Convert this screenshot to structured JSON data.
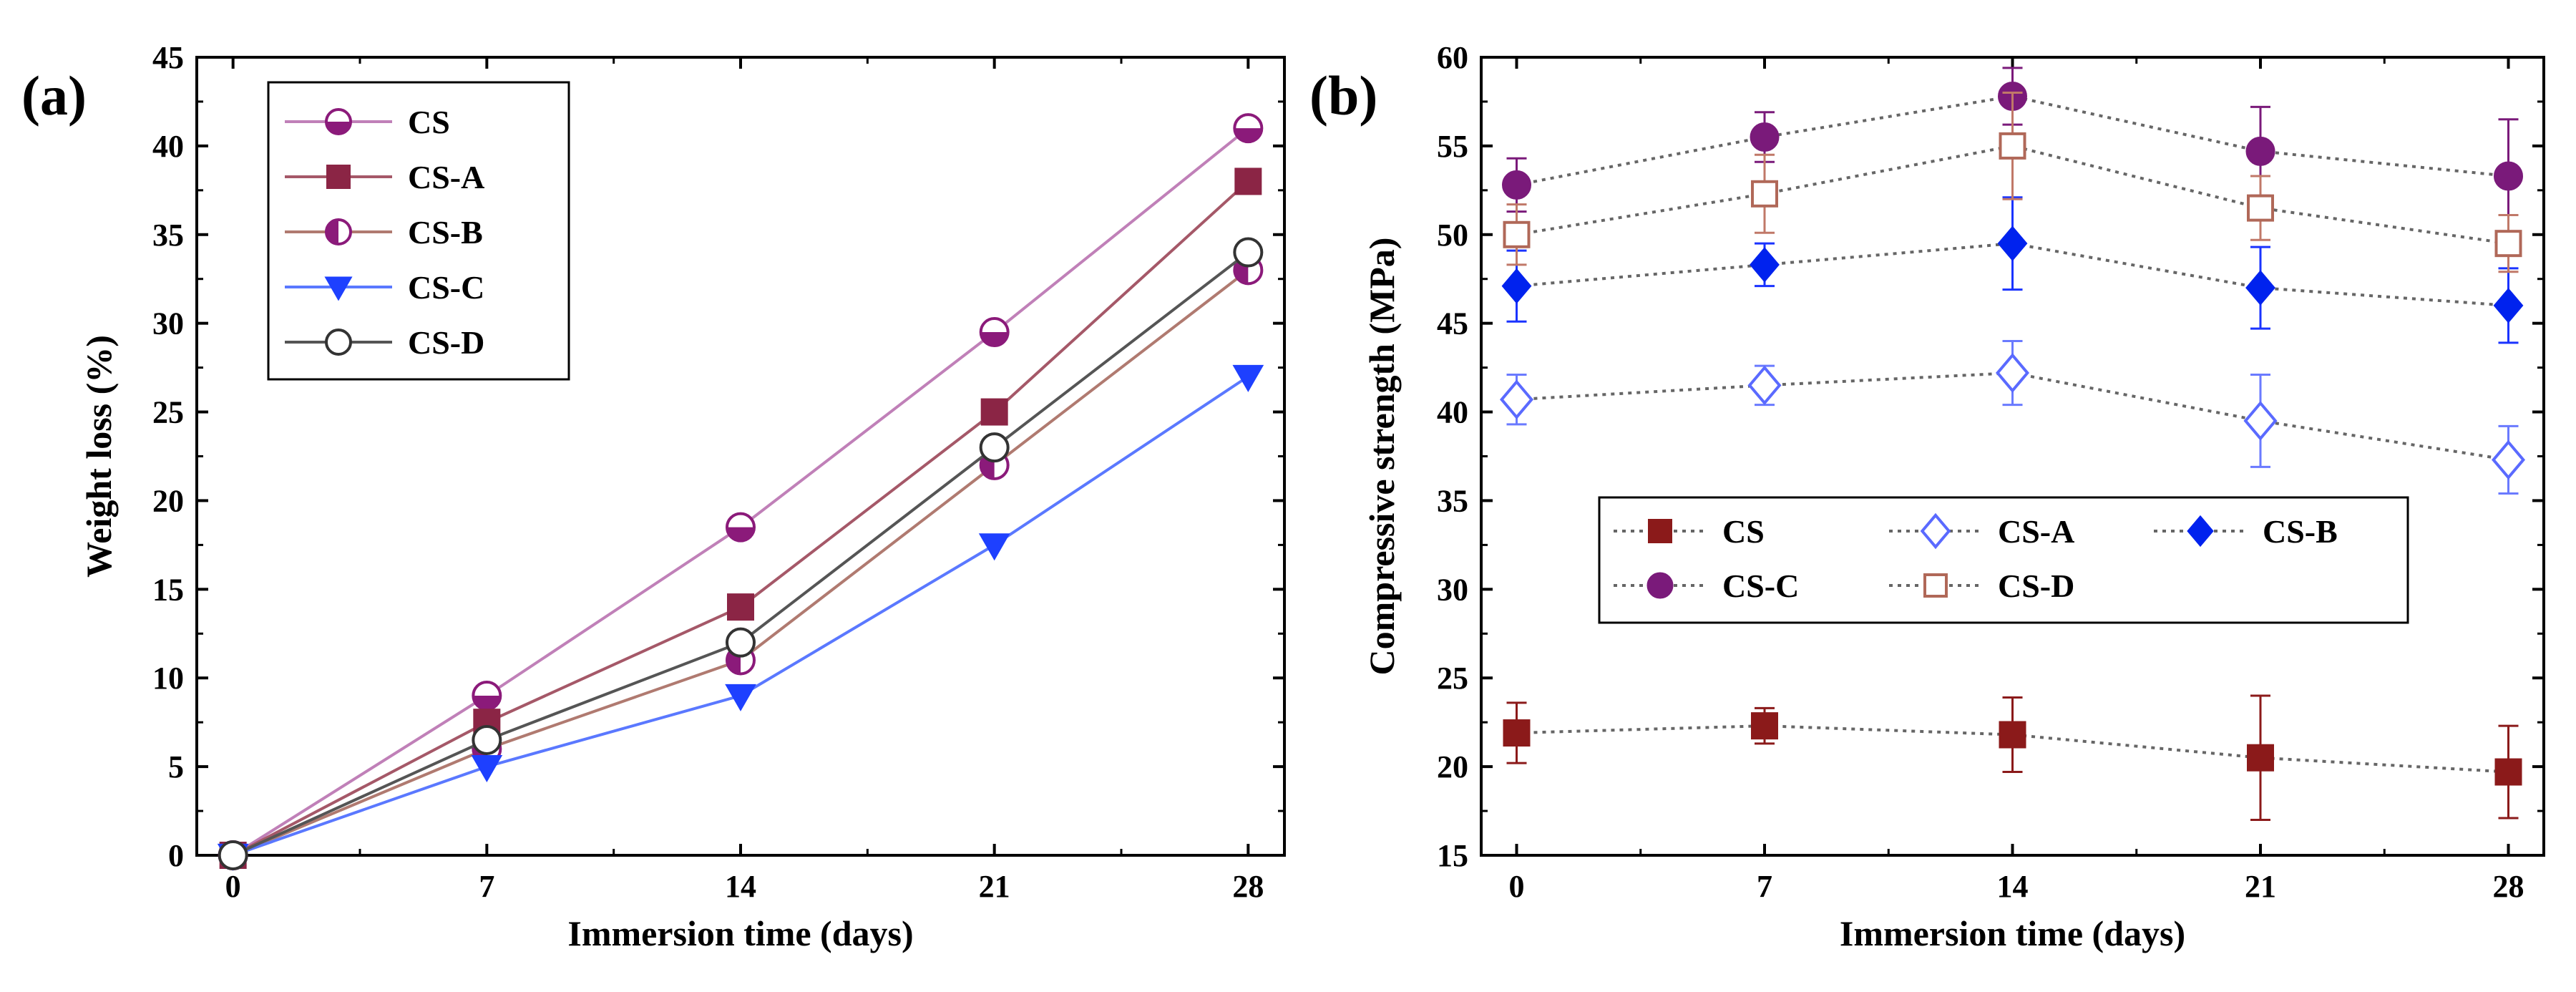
{
  "chart_data": [
    {
      "type": "line",
      "panel_label": "(a)",
      "xlabel": "Immersion time (days)",
      "ylabel": "Weight loss (%)",
      "x": [
        0,
        7,
        14,
        21,
        28
      ],
      "xticks": [
        "0",
        "7",
        "14",
        "21",
        "28"
      ],
      "xlim": [
        -1,
        29
      ],
      "ylim": [
        0,
        45
      ],
      "yticks": [
        "0",
        "5",
        "10",
        "15",
        "20",
        "25",
        "30",
        "35",
        "40",
        "45"
      ],
      "grid": false,
      "legend_position": "top-left",
      "series": [
        {
          "name": "CS",
          "values": [
            0,
            9,
            18.5,
            29.5,
            41
          ],
          "color": "#c080b8",
          "marker": "circle-half-bottom",
          "marker_color": "#8b1a7a"
        },
        {
          "name": "CS-A",
          "values": [
            0,
            7.5,
            14,
            25,
            38
          ],
          "color": "#a55868",
          "marker": "square",
          "marker_color": "#8b2545"
        },
        {
          "name": "CS-B",
          "values": [
            0,
            6,
            11,
            22,
            33
          ],
          "color": "#b07a70",
          "marker": "circle-half-left",
          "marker_color": "#8b1a7a"
        },
        {
          "name": "CS-C",
          "values": [
            0,
            5,
            9,
            17.5,
            27
          ],
          "color": "#5a78ff",
          "marker": "triangle-down",
          "marker_color": "#1e40ff"
        },
        {
          "name": "CS-D",
          "values": [
            0,
            6.5,
            12,
            23,
            34
          ],
          "color": "#555555",
          "marker": "circle-open",
          "marker_color": "#333333"
        }
      ]
    },
    {
      "type": "line",
      "panel_label": "(b)",
      "xlabel": "Immersion time (days)",
      "ylabel": "Compressive strength (MPa)",
      "x": [
        0,
        7,
        14,
        21,
        28
      ],
      "xticks": [
        "0",
        "7",
        "14",
        "21",
        "28"
      ],
      "xlim": [
        -1,
        29
      ],
      "ylim": [
        15,
        60
      ],
      "yticks": [
        "15",
        "20",
        "25",
        "30",
        "35",
        "40",
        "45",
        "50",
        "55",
        "60"
      ],
      "grid": false,
      "legend_position": "center",
      "series": [
        {
          "name": "CS",
          "values": [
            21.9,
            22.3,
            21.8,
            20.5,
            19.7
          ],
          "errors": [
            1.7,
            1.0,
            2.1,
            3.5,
            2.6
          ],
          "color": "#8b1a1a",
          "marker": "square",
          "marker_color": "#8b1a1a"
        },
        {
          "name": "CS-A",
          "values": [
            40.7,
            41.5,
            42.2,
            39.5,
            37.3
          ],
          "errors": [
            1.4,
            1.1,
            1.8,
            2.6,
            1.9
          ],
          "color": "#6a7aff",
          "marker": "diamond-open",
          "marker_color": "#5a6aff"
        },
        {
          "name": "CS-B",
          "values": [
            47.1,
            48.3,
            49.5,
            47.0,
            46.0
          ],
          "errors": [
            2.0,
            1.2,
            2.6,
            2.3,
            2.1
          ],
          "color": "#1a33ff",
          "marker": "diamond",
          "marker_color": "#0022ee"
        },
        {
          "name": "CS-C",
          "values": [
            52.8,
            55.5,
            57.8,
            54.7,
            53.3
          ],
          "errors": [
            1.5,
            1.4,
            1.6,
            2.5,
            3.2
          ],
          "color": "#7a1a7a",
          "marker": "circle",
          "marker_color": "#7a1a7a"
        },
        {
          "name": "CS-D",
          "values": [
            50.0,
            52.3,
            55.0,
            51.5,
            49.5
          ],
          "errors": [
            1.7,
            2.2,
            3.0,
            1.8,
            1.6
          ],
          "color": "#c07868",
          "marker": "square-open",
          "marker_color": "#b06858"
        }
      ]
    }
  ]
}
